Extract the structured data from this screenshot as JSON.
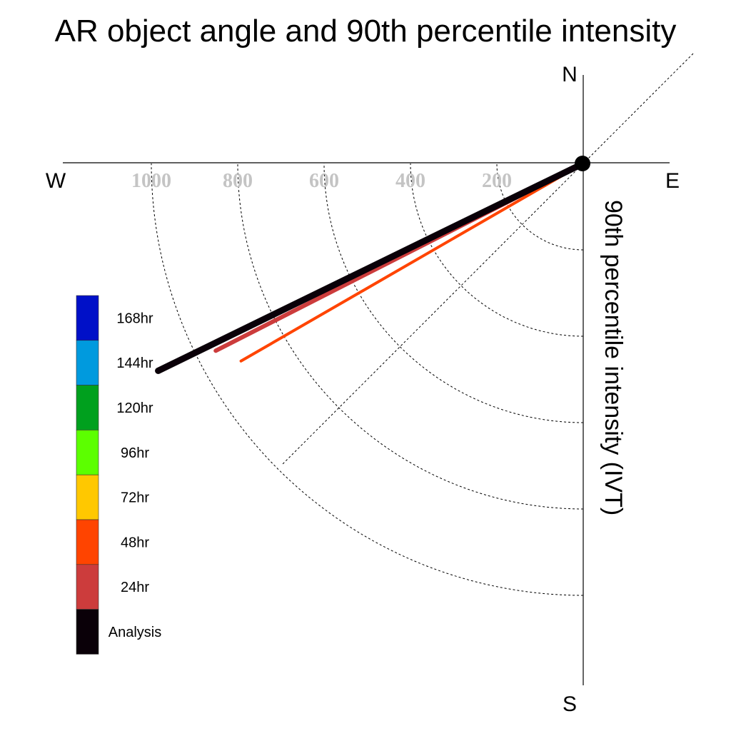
{
  "chart_data": {
    "type": "polar-vector",
    "title": "AR object angle and 90th percentile intensity",
    "radial_label": "90th percentile intensity (IVT)",
    "compass": {
      "north": "N",
      "south": "S",
      "east": "E",
      "west": "W"
    },
    "radial_ticks": [
      200,
      400,
      600,
      800,
      1000
    ],
    "radial_max": 1200,
    "grid": true,
    "reference_line_degrees": 45,
    "legend": {
      "position": "left",
      "entries": [
        {
          "label": "168hr",
          "color": "#0010c8"
        },
        {
          "label": "144hr",
          "color": "#009ade"
        },
        {
          "label": "120hr",
          "color": "#00a01e"
        },
        {
          "label": "96hr",
          "color": "#5cff00"
        },
        {
          "label": "72hr",
          "color": "#ffc800"
        },
        {
          "label": "48hr",
          "color": "#ff4400"
        },
        {
          "label": "24hr",
          "color": "#cc3c3c"
        },
        {
          "label": "Analysis",
          "color": "#0a0008"
        }
      ]
    },
    "series": [
      {
        "name": "48hr",
        "color": "#ff4400",
        "intensity": 915,
        "direction_deg": 240
      },
      {
        "name": "24hr",
        "color": "#cc3c3c",
        "intensity": 955,
        "direction_deg": 243
      },
      {
        "name": "Analysis",
        "color": "#0a0008",
        "intensity": 1095,
        "direction_deg": 244
      }
    ]
  }
}
